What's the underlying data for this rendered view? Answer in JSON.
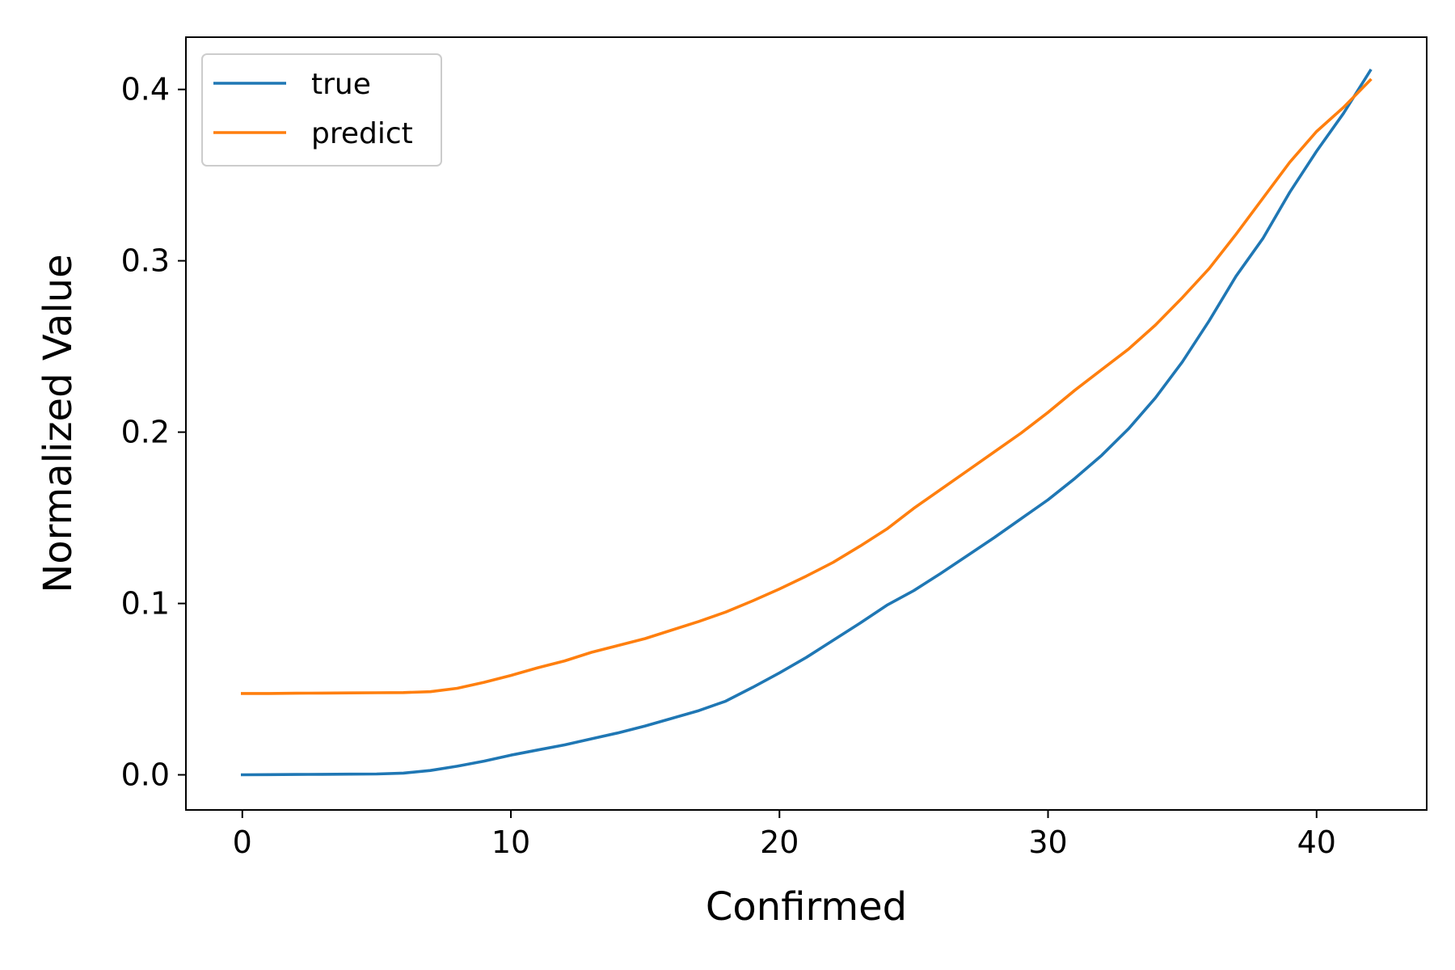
{
  "chart_data": {
    "type": "line",
    "title": "",
    "xlabel": "Confirmed",
    "ylabel": "Normalized Value",
    "xlim": [
      -2.1,
      44.1
    ],
    "ylim": [
      -0.0205,
      0.4305
    ],
    "x_ticks": [
      0,
      10,
      20,
      30,
      40
    ],
    "x_tick_labels": [
      "0",
      "10",
      "20",
      "30",
      "40"
    ],
    "y_ticks": [
      0.0,
      0.1,
      0.2,
      0.3,
      0.4
    ],
    "y_tick_labels": [
      "0.0",
      "0.1",
      "0.2",
      "0.3",
      "0.4"
    ],
    "grid": false,
    "legend_position": "top-left",
    "x": [
      0,
      1,
      2,
      3,
      4,
      5,
      6,
      7,
      8,
      9,
      10,
      11,
      12,
      13,
      14,
      15,
      16,
      17,
      18,
      19,
      20,
      21,
      22,
      23,
      24,
      25,
      26,
      27,
      28,
      29,
      30,
      31,
      32,
      33,
      34,
      35,
      36,
      37,
      38,
      39,
      40,
      41,
      42
    ],
    "series": [
      {
        "name": "true",
        "color": "#1f77b4",
        "values": [
          0.0,
          0.0001,
          0.0002,
          0.0003,
          0.0004,
          0.0005,
          0.001,
          0.0025,
          0.005,
          0.008,
          0.0115,
          0.0145,
          0.0175,
          0.021,
          0.0245,
          0.0285,
          0.033,
          0.0375,
          0.043,
          0.051,
          0.0595,
          0.0685,
          0.0785,
          0.0885,
          0.099,
          0.1075,
          0.1175,
          0.128,
          0.1385,
          0.1495,
          0.1605,
          0.173,
          0.1865,
          0.202,
          0.22,
          0.241,
          0.265,
          0.291,
          0.313,
          0.34,
          0.364,
          0.386,
          0.411
        ]
      },
      {
        "name": "predict",
        "color": "#ff7f0e",
        "values": [
          0.0475,
          0.0475,
          0.0476,
          0.0477,
          0.0478,
          0.0479,
          0.048,
          0.0485,
          0.0505,
          0.054,
          0.058,
          0.0625,
          0.0665,
          0.0715,
          0.0755,
          0.0795,
          0.0845,
          0.0895,
          0.095,
          0.1015,
          0.1085,
          0.116,
          0.124,
          0.1335,
          0.1435,
          0.1555,
          0.1665,
          0.1775,
          0.1885,
          0.1995,
          0.2115,
          0.2245,
          0.2365,
          0.2485,
          0.2625,
          0.2785,
          0.2955,
          0.3155,
          0.3365,
          0.3575,
          0.3755,
          0.3895,
          0.4055
        ]
      }
    ]
  }
}
